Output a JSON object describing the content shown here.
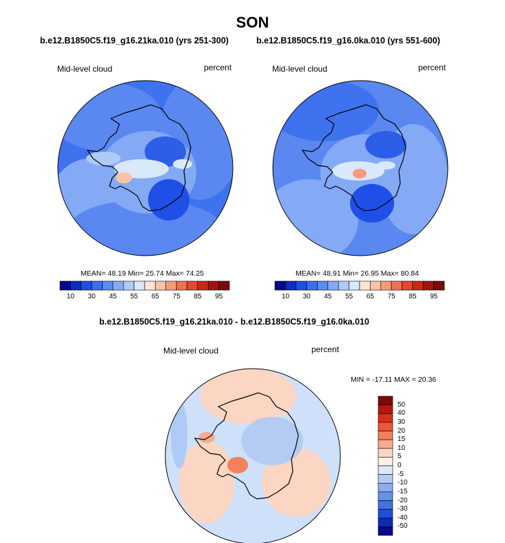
{
  "title": "SON",
  "panel_left": {
    "subtitle": "b.e12.B1850C5.f19_g16.21ka.010 (yrs 251-300)",
    "variable": "Mid-level cloud",
    "units": "percent",
    "stats": "MEAN=  48.19  Min=  25.74  Max=  74.25"
  },
  "panel_right": {
    "subtitle": "b.e12.B1850C5.f19_g16.0ka.010 (yrs 551-600)",
    "variable": "Mid-level cloud",
    "units": "percent",
    "stats": "MEAN=  48.91  Min=  26.95  Max=  80.84"
  },
  "panel_diff": {
    "subtitle": "b.e12.B1850C5.f19_g16.21ka.010 - b.e12.B1850C5.f19_g16.0ka.010",
    "variable": "Mid-level cloud",
    "units": "percent",
    "stats": "MIN = -17.11 MAX =  20.36"
  },
  "colorbar_main": {
    "colors": [
      "#08088c",
      "#0c2cc4",
      "#1f4fe6",
      "#3b6ef0",
      "#5b8cf2",
      "#84a9f5",
      "#aecbf7",
      "#d9e8fa",
      "#fde5d8",
      "#f9c3a9",
      "#f49b7c",
      "#ef7052",
      "#e5482e",
      "#c8281a",
      "#a31410",
      "#7a0a0a"
    ],
    "labels": [
      "10",
      "30",
      "45",
      "55",
      "65",
      "75",
      "85",
      "95"
    ]
  },
  "colorbar_diff": {
    "colors": [
      "#7a0a0a",
      "#b8160e",
      "#d8301c",
      "#ef5634",
      "#f4815e",
      "#f7ab8e",
      "#fbd6c2",
      "#fef0e6",
      "#dce9fb",
      "#b4ccf4",
      "#8aadef",
      "#6690ea",
      "#4171e4",
      "#2050d8",
      "#0c2cb4",
      "#08088c"
    ],
    "labels": [
      "50",
      "40",
      "30",
      "20",
      "15",
      "10",
      "5",
      "0",
      "-5",
      "-10",
      "-15",
      "-20",
      "-30",
      "-40",
      "-50"
    ]
  },
  "map_colors": {
    "ocean_left": "#3f72ee",
    "ocean_right": "#5a88f0",
    "diff_ocean": "#cfe0fa",
    "coast": "#000000"
  }
}
